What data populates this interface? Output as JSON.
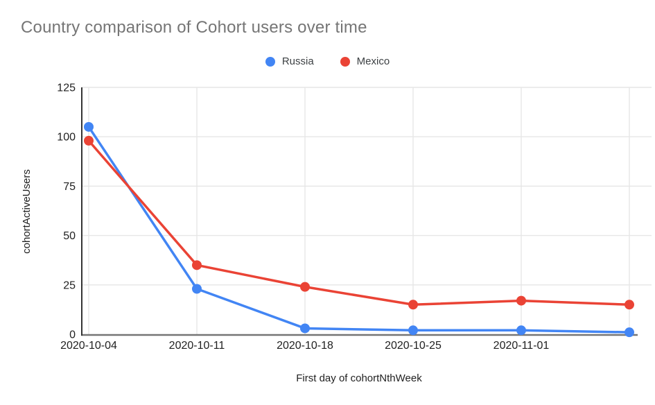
{
  "chart_data": {
    "type": "line",
    "title": "Country comparison of Cohort users over time",
    "xlabel": "First day of cohortNthWeek",
    "ylabel": "cohortActiveUsers",
    "categories": [
      "2020-10-04",
      "2020-10-11",
      "2020-10-18",
      "2020-10-25",
      "2020-11-01",
      ""
    ],
    "series": [
      {
        "name": "Russia",
        "color": "#4285F4",
        "values": [
          105,
          23,
          3,
          2,
          2,
          1
        ]
      },
      {
        "name": "Mexico",
        "color": "#EA4335",
        "values": [
          98,
          35,
          24,
          15,
          17,
          15
        ]
      }
    ],
    "ylim": [
      0,
      125
    ],
    "y_ticks": [
      0,
      25,
      50,
      75,
      100,
      125
    ],
    "grid": true,
    "legend_position": "top",
    "marker": "circle"
  },
  "style_colors": {
    "background": "#ffffff",
    "title_text": "#757575",
    "axis_text": "#1f1f1f",
    "legend_text": "#3c4043",
    "gridline": "#e6e6e6",
    "axis_line_left": "#333333",
    "axis_line_bottom": "#757575"
  }
}
